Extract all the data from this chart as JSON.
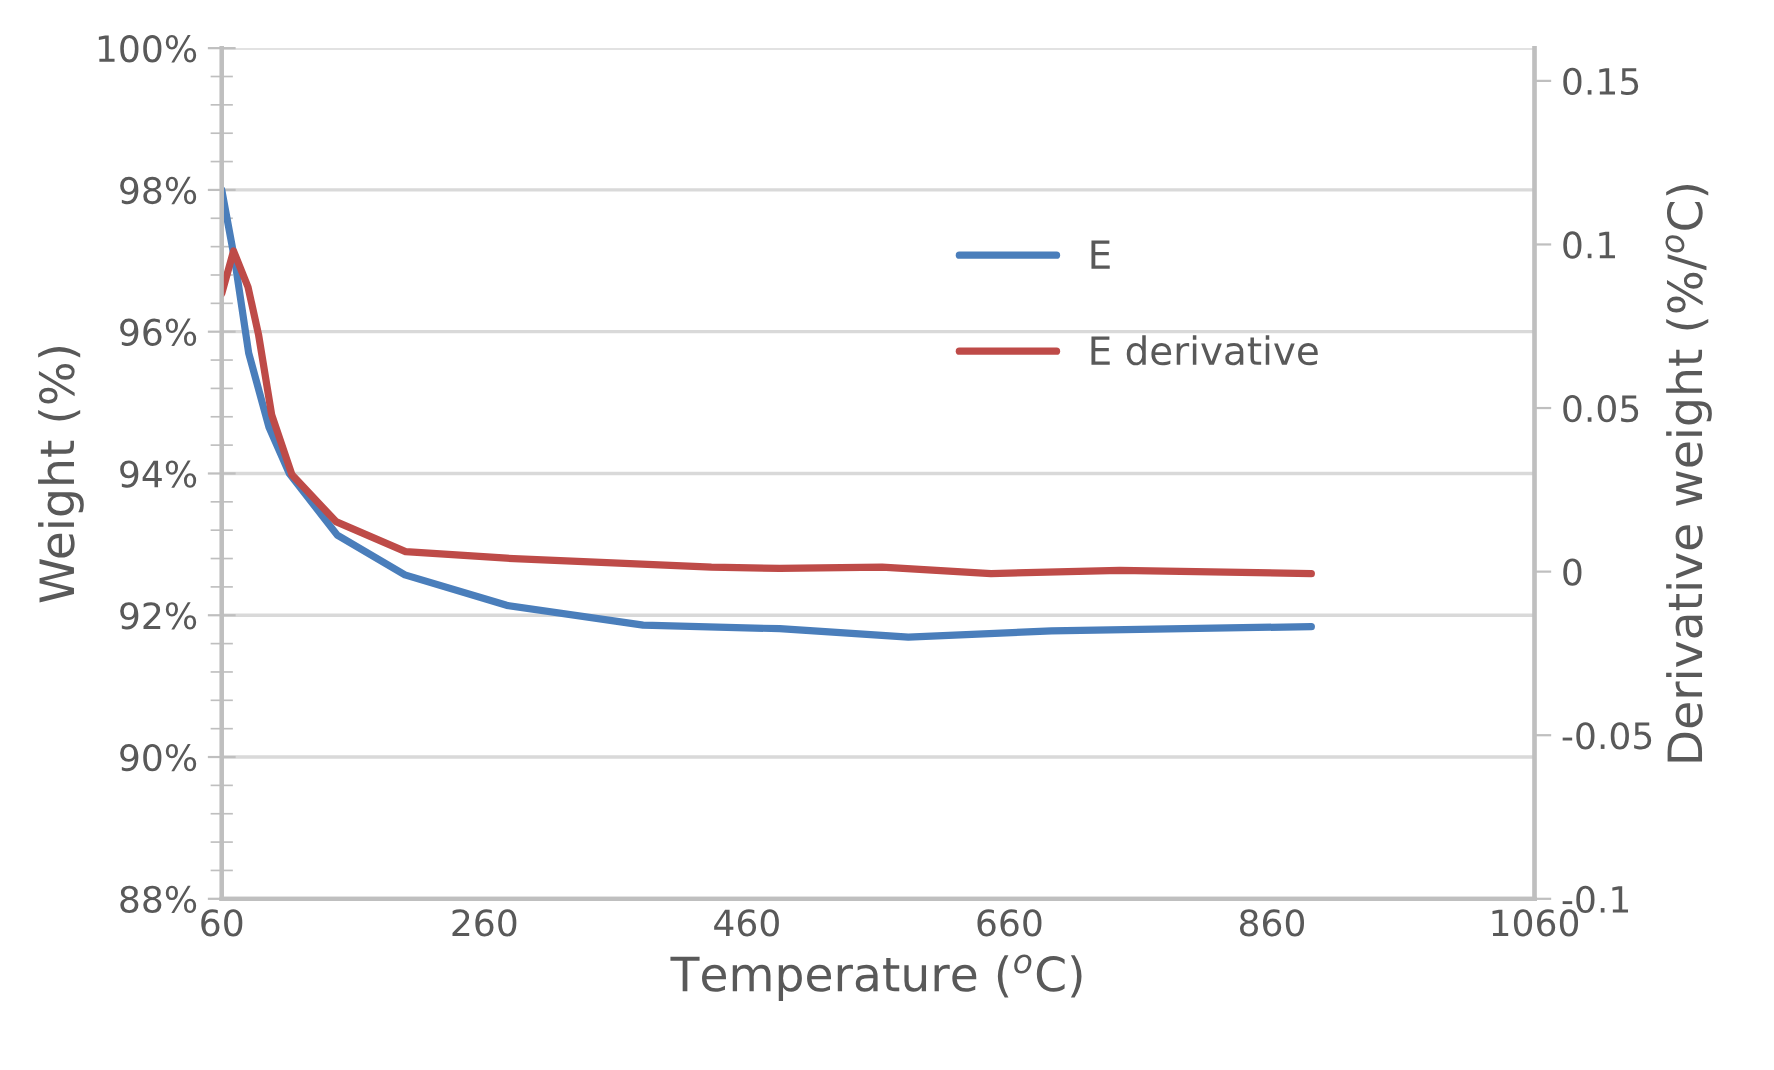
{
  "chart_data": {
    "type": "line",
    "xlabel": "Temperature ($^{o}$C)",
    "ylabel": "Weight (%)",
    "y2label": "Derivative weight (%/$^{o}$C)",
    "series": [
      {
        "name": "E",
        "color": "#4a7ebb",
        "x": [
          60,
          70,
          80.5,
          96,
          111.5,
          148,
          199.5,
          277,
          381,
          485,
          583,
          692,
          890
        ],
        "values": [
          98.0,
          97.0,
          95.7,
          94.65,
          94.0,
          93.13,
          92.57,
          92.14,
          91.86,
          91.81,
          91.69,
          91.78,
          91.84
        ]
      },
      {
        "name": "E derivative",
        "color": "#be4b48",
        "axis": "y2",
        "x": [
          60,
          69,
          80,
          88,
          98,
          113.5,
          147,
          200,
          277,
          433,
          485,
          563,
          646,
          744,
          890
        ],
        "values": [
          0.085,
          0.098,
          0.087,
          0.0725,
          0.048,
          0.0296,
          0.0153,
          0.0061,
          0.0041,
          0.0014,
          0.001,
          0.0014,
          -0.0006,
          0.0004,
          -0.0006
        ]
      }
    ],
    "xlim": [
      60,
      1060
    ],
    "xticks": [
      60,
      260,
      460,
      660,
      860,
      1060
    ],
    "ylim": [
      88,
      100
    ],
    "yticks": [
      {
        "value": 88,
        "label": "88%"
      },
      {
        "value": 90,
        "label": "90%"
      },
      {
        "value": 92,
        "label": "92%"
      },
      {
        "value": 94,
        "label": "94%"
      },
      {
        "value": 96,
        "label": "96%"
      },
      {
        "value": 98,
        "label": "98%"
      },
      {
        "value": 100,
        "label": "100%"
      }
    ],
    "y2lim": [
      -0.1,
      0.16
    ],
    "y2ticks": [
      -0.1,
      -0.05,
      0,
      0.05,
      0.1,
      0.15
    ],
    "grid": "y",
    "legend": "top right",
    "marker": "none",
    "line_style": "solid"
  }
}
